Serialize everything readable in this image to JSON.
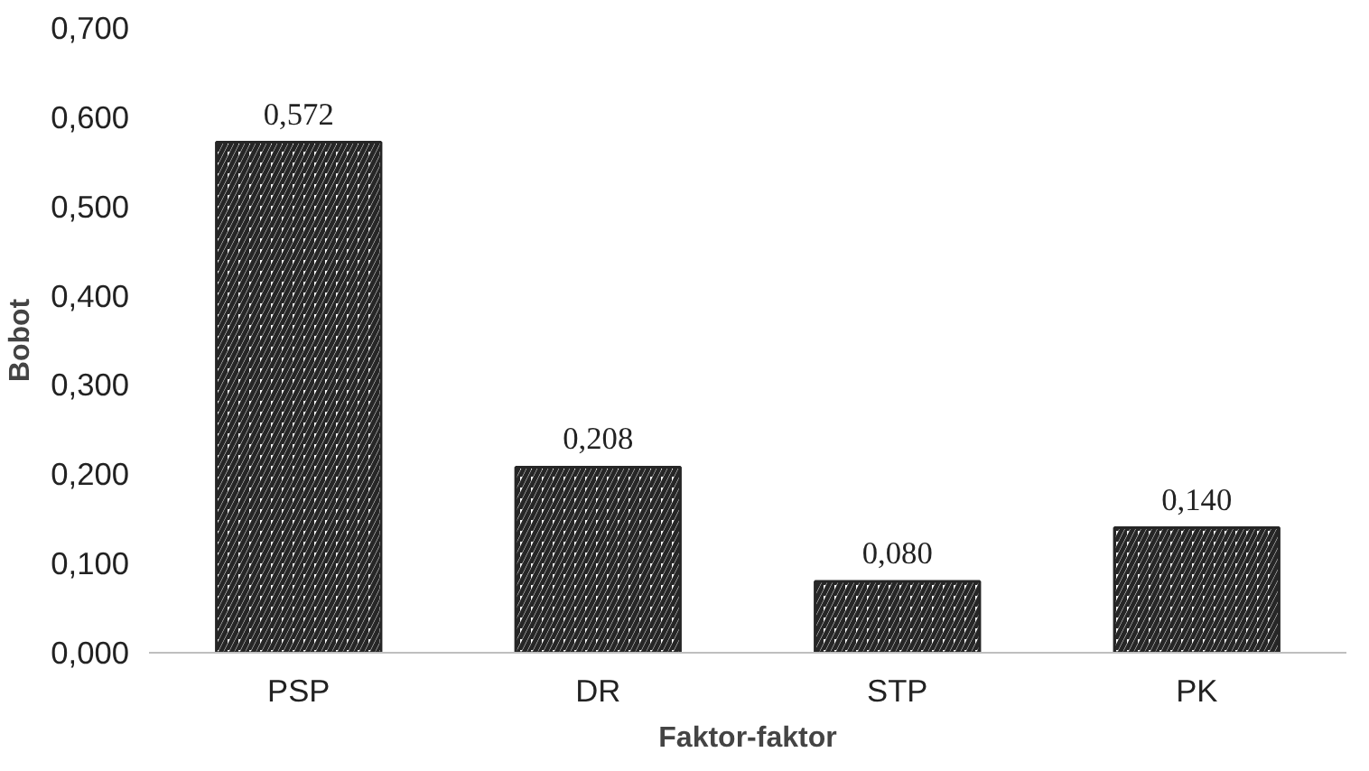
{
  "chart_data": {
    "type": "bar",
    "xlabel": "Faktor-faktor",
    "ylabel": "Bobot",
    "categories": [
      "PSP",
      "DR",
      "STP",
      "PK"
    ],
    "values": [
      0.572,
      0.208,
      0.08,
      0.14
    ],
    "value_labels": [
      "0,572",
      "0,208",
      "0,080",
      "0,140"
    ],
    "color": "#262626",
    "ylim": [
      0,
      0.7
    ],
    "yticks": [
      {
        "value": 0,
        "label": "0,000"
      },
      {
        "value": 0.1,
        "label": "0,100"
      },
      {
        "value": 0.2,
        "label": "0,200"
      },
      {
        "value": 0.3,
        "label": "0,300"
      },
      {
        "value": 0.4,
        "label": "0,400"
      },
      {
        "value": 0.5,
        "label": "0,500"
      },
      {
        "value": 0.6,
        "label": "0,600"
      },
      {
        "value": 0.7,
        "label": "0,700"
      }
    ],
    "grid": false
  }
}
